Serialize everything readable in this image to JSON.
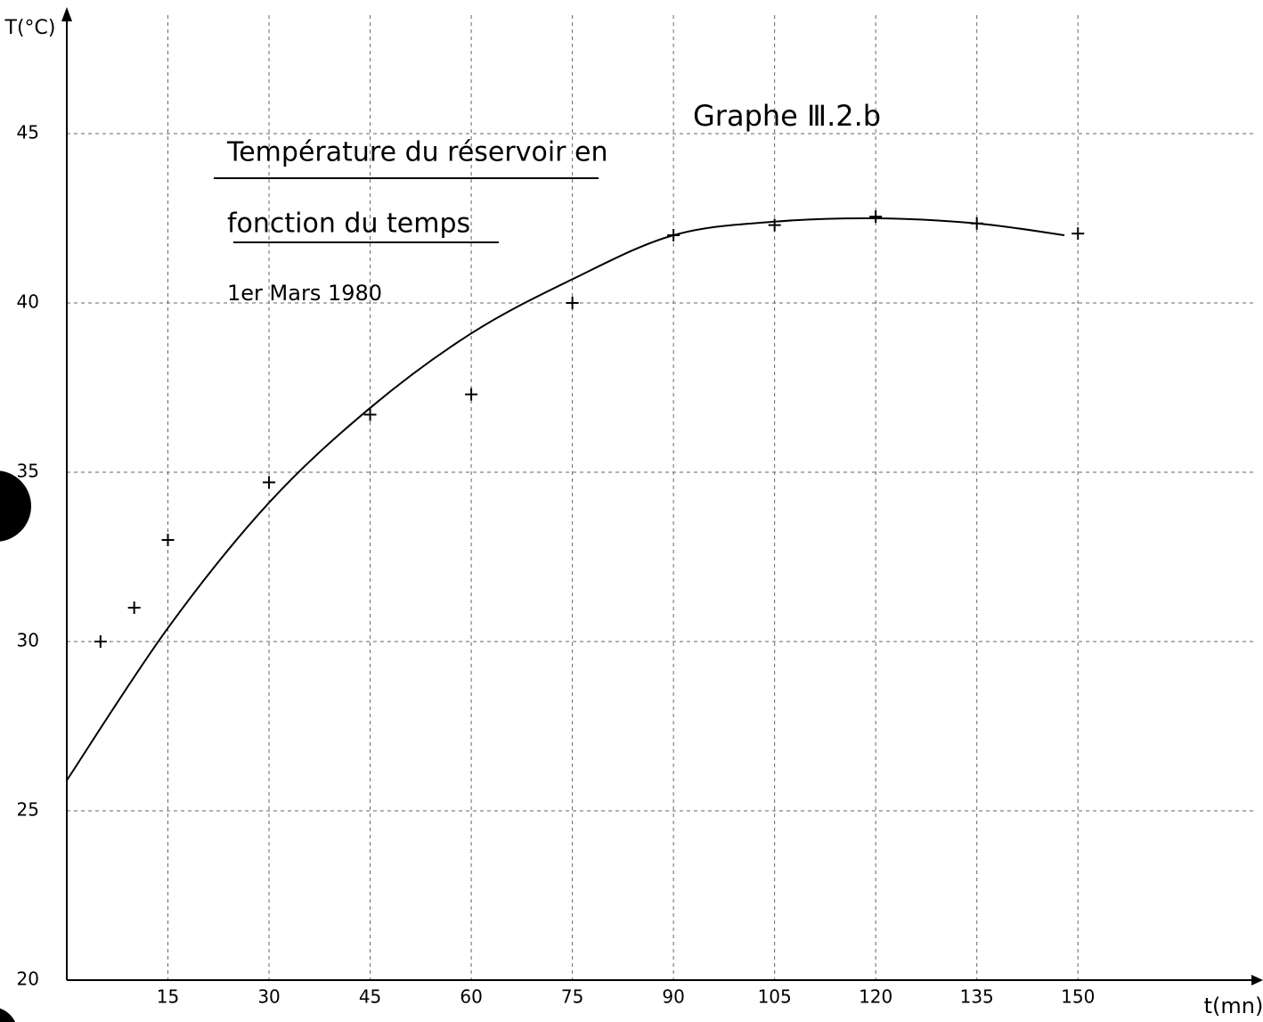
{
  "chart_data": {
    "type": "scatter",
    "title": [
      "Température du réservoir en",
      "fonction du temps"
    ],
    "subtitle": "1er Mars 1980",
    "annotation": "Graphe Ⅲ.2.b",
    "x_label": "t(mn)",
    "y_label": "T(°C)",
    "xlim": [
      0,
      176
    ],
    "ylim": [
      20,
      48.5
    ],
    "xticks": [
      15,
      30,
      45,
      60,
      75,
      90,
      105,
      120,
      135,
      150
    ],
    "yticks": [
      20,
      25,
      30,
      35,
      40,
      45
    ],
    "grid": true,
    "color": "#000000",
    "points": {
      "x": [
        5,
        10,
        15,
        30,
        45,
        60,
        75,
        90,
        105,
        120,
        135,
        150
      ],
      "values": [
        30,
        31,
        33,
        34.7,
        36.7,
        37.3,
        40,
        42,
        42.3,
        42.55,
        42.35,
        42.05
      ]
    },
    "curve": {
      "x": [
        0,
        15,
        30,
        45,
        60,
        75,
        90,
        105,
        120,
        135,
        148
      ],
      "values": [
        25.9,
        30.4,
        34.1,
        36.9,
        39.1,
        40.7,
        42,
        42.4,
        42.5,
        42.35,
        42
      ]
    }
  }
}
